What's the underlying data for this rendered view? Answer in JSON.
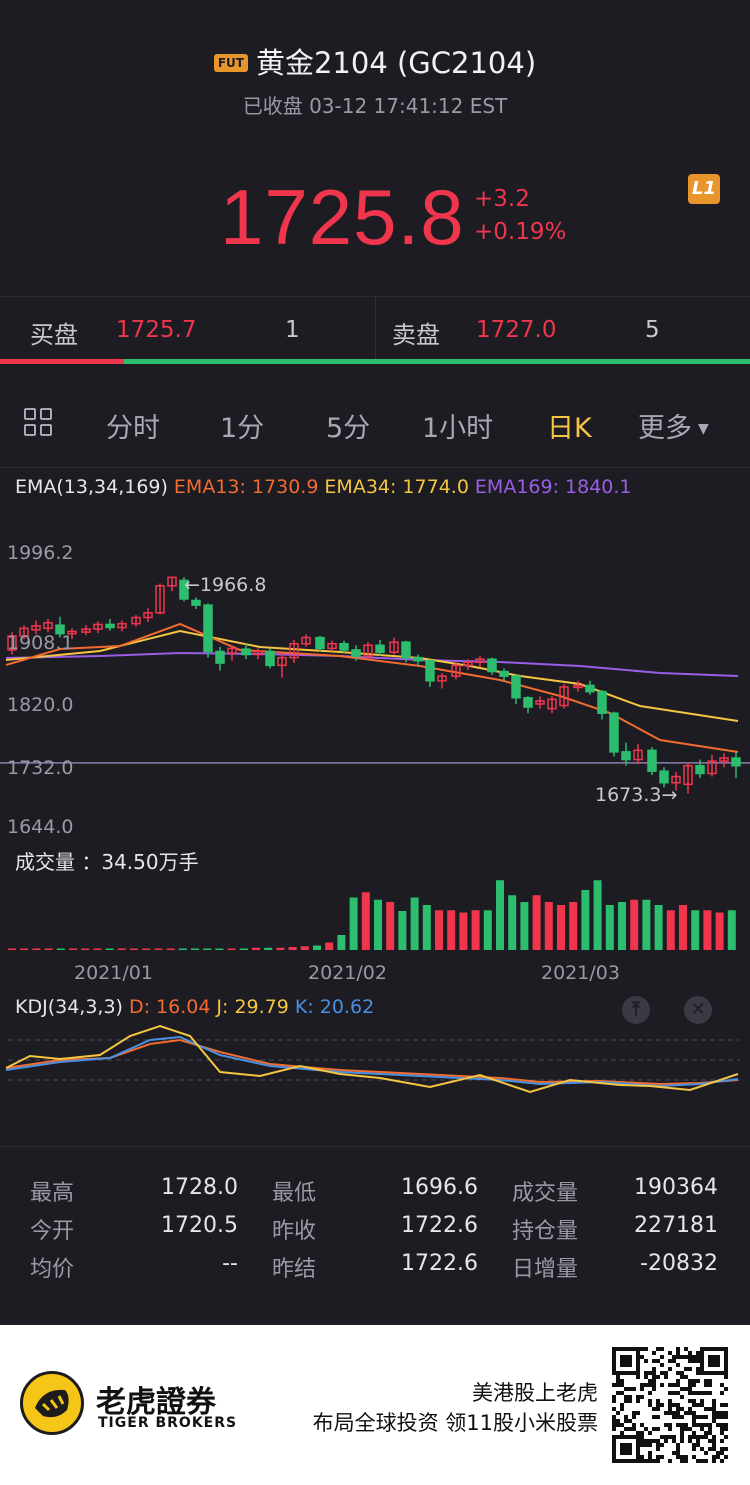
{
  "header": {
    "badge": "FUT",
    "title": "黄金2104 (GC2104)",
    "status": "已收盘 03-12 17:41:12 EST",
    "price": "1725.8",
    "change": "+3.2",
    "change_pct": "+0.19%",
    "level_badge": "L1"
  },
  "quote": {
    "bid_label": "买盘",
    "bid_price": "1725.7",
    "bid_qty": "1",
    "ask_label": "卖盘",
    "ask_price": "1727.0",
    "ask_qty": "5"
  },
  "tabs": [
    "分时",
    "1分",
    "5分",
    "1小时",
    "日K",
    "更多"
  ],
  "active_tab": "日K",
  "ema": {
    "label": "EMA(13,34,169)",
    "ema13": "EMA13: 1730.9",
    "ema34": "EMA34: 1774.0",
    "ema169": "EMA169: 1840.1"
  },
  "price_axis": [
    "1996.2",
    "1908.1",
    "1820.0",
    "1732.0",
    "1644.0"
  ],
  "annotations": {
    "high": "←1966.8",
    "low": "1673.3→"
  },
  "volume_label": "成交量 ：34.50万手",
  "date_axis": [
    "2021/01",
    "2021/02",
    "2021/03"
  ],
  "kdj": {
    "label": "KDJ(34,3,3)",
    "d": "D: 16.04",
    "j": "J: 29.79",
    "k": "K: 20.62"
  },
  "stats": {
    "high_label": "最高",
    "high": "1728.0",
    "open_label": "今开",
    "open": "1720.5",
    "avg_label": "均价",
    "avg": "--",
    "low_label": "最低",
    "low": "1696.6",
    "prev_close_label": "昨收",
    "prev_close": "1722.6",
    "prev_settle_label": "昨结",
    "prev_settle": "1722.6",
    "volume_label": "成交量",
    "volume": "190364",
    "oi_label": "持仓量",
    "oi": "227181",
    "oi_change_label": "日增量",
    "oi_change": "-20832"
  },
  "footer": {
    "brand_cn": "老虎證券",
    "brand_en": "TIGER BROKERS",
    "slogan1": "美港股上老虎",
    "slogan2": "布局全球投资 领11股小米股票"
  },
  "colors": {
    "up": "#f0364d",
    "down": "#2dbd6e",
    "accent": "#f5c542",
    "ema13": "#f26b2f",
    "ema34": "#f5c542",
    "ema169": "#9b5de5",
    "k": "#4a90e2",
    "d": "#f26b2f",
    "j": "#f5c542"
  }
}
